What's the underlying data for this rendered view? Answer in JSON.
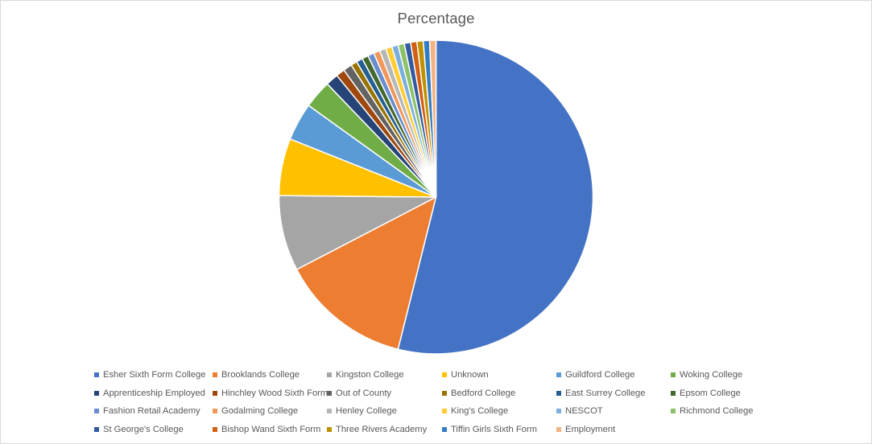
{
  "chart_data": {
    "type": "pie",
    "title": "Percentage",
    "legend_position": "bottom",
    "categories": [
      "Esher Sixth Form College",
      "Brooklands College",
      "Kingston College",
      "Unknown",
      "Guildford College",
      "Woking College",
      "Apprenticeship Employed",
      "Hinchley Wood Sixth Form",
      "Out of County",
      "Bedford College",
      "East Surrey College",
      "Epsom College",
      "Fashion Retail Academy",
      "Godalming College",
      "Henley College",
      "King's College",
      "NESCOT",
      "Richmond College",
      "St George's College",
      "Bishop Wand Sixth Form",
      "Three Rivers Academy",
      "Tiffin Girls Sixth Form",
      "Employment"
    ],
    "values": [
      54.0,
      13.5,
      7.8,
      5.9,
      3.9,
      2.9,
      1.3,
      0.9,
      0.9,
      0.65,
      0.65,
      0.65,
      0.65,
      0.65,
      0.65,
      0.65,
      0.65,
      0.65,
      0.65,
      0.65,
      0.65,
      0.65,
      0.65
    ],
    "colors": [
      "#4472C4",
      "#ED7D31",
      "#A5A5A5",
      "#FFC000",
      "#5B9BD5",
      "#70AD47",
      "#264478",
      "#9E480E",
      "#636363",
      "#997300",
      "#255E91",
      "#43682B",
      "#698ED0",
      "#F1975A",
      "#B7B7B7",
      "#FFCD33",
      "#7CAFDD",
      "#8CC168",
      "#335AA1",
      "#D26012",
      "#BF9000",
      "#327DC2",
      "#F4B183"
    ]
  }
}
